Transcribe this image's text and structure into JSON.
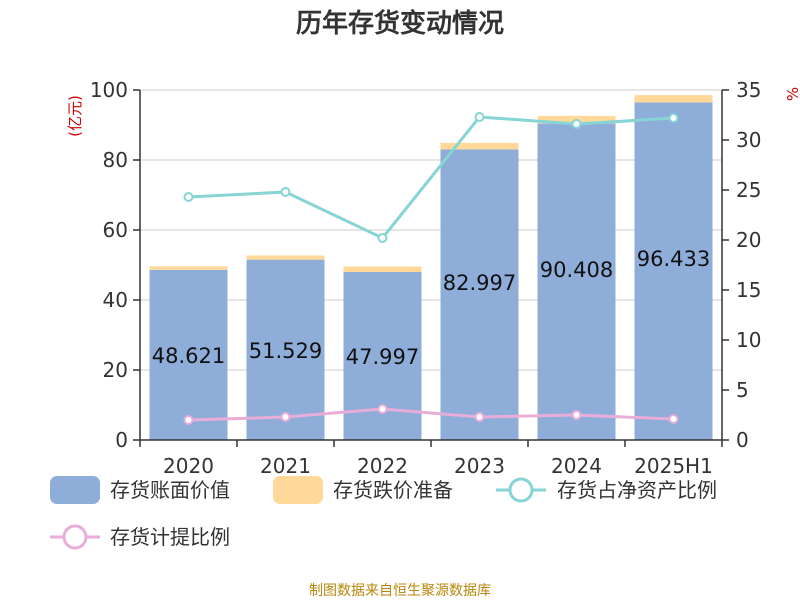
{
  "colors": {
    "book_value": "#8EADD9",
    "reserve": "#FFD89A",
    "share_of_net_assets": "#86D4D4",
    "provision_ratio": "#E8ADD8",
    "axis": "#333333",
    "grid": "#CCCCCC",
    "unit": "#CC0000",
    "source": "#B8860B"
  },
  "chart_data": {
    "type": "bar",
    "title": "历年存货变动情况",
    "categories": [
      "2020",
      "2021",
      "2022",
      "2023",
      "2024",
      "2025H1"
    ],
    "ylabel_left": "(亿元)",
    "ylabel_right": "%",
    "ylim_left": [
      0,
      100
    ],
    "ylim_right": [
      0,
      35
    ],
    "yticks_left": [
      0,
      20,
      40,
      60,
      80,
      100
    ],
    "yticks_right": [
      0,
      5,
      10,
      15,
      20,
      25,
      30,
      35
    ],
    "grid": true,
    "legend_position": "bottom",
    "series": [
      {
        "name": "存货账面价值",
        "type": "bar",
        "axis": "left",
        "values": [
          48.621,
          51.529,
          47.997,
          82.997,
          90.408,
          96.433
        ],
        "labels": [
          "48.621",
          "51.529",
          "47.997",
          "82.997",
          "90.408",
          "96.433"
        ]
      },
      {
        "name": "存货跌价准备",
        "type": "bar-stacked",
        "axis": "left",
        "values": [
          1.0,
          1.2,
          1.6,
          1.9,
          2.2,
          2.1
        ]
      },
      {
        "name": "存货占净资产比例",
        "type": "line",
        "axis": "right",
        "values": [
          24.3,
          24.8,
          20.2,
          32.3,
          31.6,
          32.2
        ]
      },
      {
        "name": "存货计提比例",
        "type": "line",
        "axis": "right",
        "values": [
          2.0,
          2.3,
          3.1,
          2.3,
          2.5,
          2.1
        ]
      }
    ],
    "source": "制图数据来自恒生聚源数据库"
  }
}
